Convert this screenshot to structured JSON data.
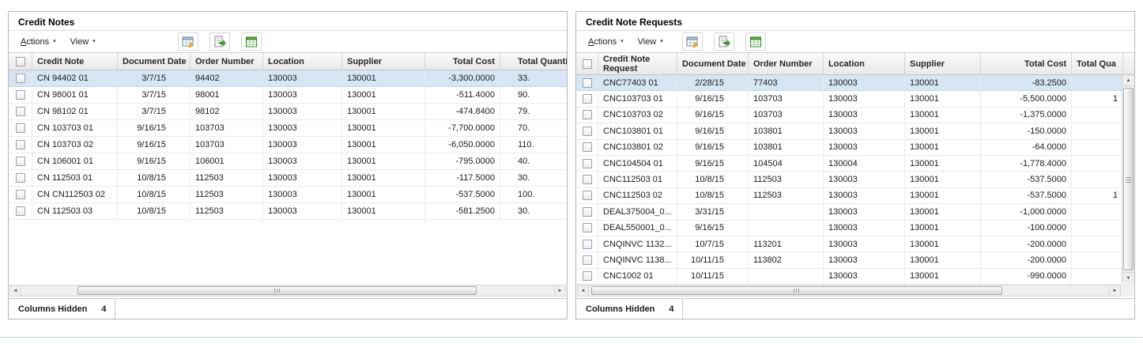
{
  "colors": {
    "selection": "#d7e6f4",
    "header_bg": "#efefef",
    "panel_border": "#b7b7b7"
  },
  "left_panel": {
    "title": "Credit Notes",
    "toolbar": {
      "actions_label": "Actions",
      "view_label": "View",
      "icons": [
        "detach-table-icon",
        "export-icon",
        "export-to-excel-icon"
      ]
    },
    "table": {
      "columns": [
        "Credit Note",
        "Document Date",
        "Order Number",
        "Location",
        "Supplier",
        "Total Cost",
        "Total Quantit"
      ],
      "selected_index": 0,
      "rows": [
        [
          "CN 94402 01",
          "3/7/15",
          "94402",
          "130003",
          "130001",
          "-3,300.0000",
          "33."
        ],
        [
          "CN 98001 01",
          "3/7/15",
          "98001",
          "130003",
          "130001",
          "-511.4000",
          "90."
        ],
        [
          "CN 98102 01",
          "3/7/15",
          "98102",
          "130003",
          "130001",
          "-474.8400",
          "79."
        ],
        [
          "CN 103703 01",
          "9/16/15",
          "103703",
          "130003",
          "130001",
          "-7,700.0000",
          "70."
        ],
        [
          "CN 103703 02",
          "9/16/15",
          "103703",
          "130003",
          "130001",
          "-6,050.0000",
          "110."
        ],
        [
          "CN 106001 01",
          "9/16/15",
          "106001",
          "130003",
          "130001",
          "-795.0000",
          "40."
        ],
        [
          "CN 112503 01",
          "10/8/15",
          "112503",
          "130003",
          "130001",
          "-117.5000",
          "30."
        ],
        [
          "CN CN112503 02",
          "10/8/15",
          "112503",
          "130003",
          "130001",
          "-537.5000",
          "100."
        ],
        [
          "CN 112503 03",
          "10/8/15",
          "112503",
          "130003",
          "130001",
          "-581.2500",
          "30."
        ]
      ]
    },
    "footer": {
      "columns_hidden_label": "Columns Hidden",
      "columns_hidden_count": "4"
    }
  },
  "right_panel": {
    "title": "Credit Note Requests",
    "toolbar": {
      "actions_label": "Actions",
      "view_label": "View",
      "icons": [
        "detach-table-icon",
        "export-icon",
        "export-to-excel-icon"
      ]
    },
    "table": {
      "columns": [
        "Credit Note Request",
        "Document Date",
        "Order Number",
        "Location",
        "Supplier",
        "Total Cost",
        "Total Qua"
      ],
      "selected_index": 0,
      "rows": [
        [
          "CNC77403 01",
          "2/28/15",
          "77403",
          "130003",
          "130001",
          "-83.2500",
          ""
        ],
        [
          "CNC103703 01",
          "9/16/15",
          "103703",
          "130003",
          "130001",
          "-5,500.0000",
          "1"
        ],
        [
          "CNC103703 02",
          "9/16/15",
          "103703",
          "130003",
          "130001",
          "-1,375.0000",
          ""
        ],
        [
          "CNC103801 01",
          "9/16/15",
          "103801",
          "130003",
          "130001",
          "-150.0000",
          ""
        ],
        [
          "CNC103801 02",
          "9/16/15",
          "103801",
          "130003",
          "130001",
          "-64.0000",
          ""
        ],
        [
          "CNC104504 01",
          "9/16/15",
          "104504",
          "130004",
          "130001",
          "-1,778.4000",
          ""
        ],
        [
          "CNC112503 01",
          "10/8/15",
          "112503",
          "130003",
          "130001",
          "-537.5000",
          ""
        ],
        [
          "CNC112503 02",
          "10/8/15",
          "112503",
          "130003",
          "130001",
          "-537.5000",
          "1"
        ],
        [
          "DEAL375004_0...",
          "3/31/15",
          "",
          "130003",
          "130001",
          "-1,000.0000",
          ""
        ],
        [
          "DEAL550001_0...",
          "9/16/15",
          "",
          "130003",
          "130001",
          "-100.0000",
          ""
        ],
        [
          "CNQINVC 1132...",
          "10/7/15",
          "113201",
          "130003",
          "130001",
          "-200.0000",
          ""
        ],
        [
          "CNQINVC 1138...",
          "10/11/15",
          "113802",
          "130003",
          "130001",
          "-200.0000",
          ""
        ],
        [
          "CNC1002 01",
          "10/11/15",
          "",
          "130003",
          "130001",
          "-990.0000",
          ""
        ]
      ]
    },
    "footer": {
      "columns_hidden_label": "Columns Hidden",
      "columns_hidden_count": "4"
    }
  }
}
